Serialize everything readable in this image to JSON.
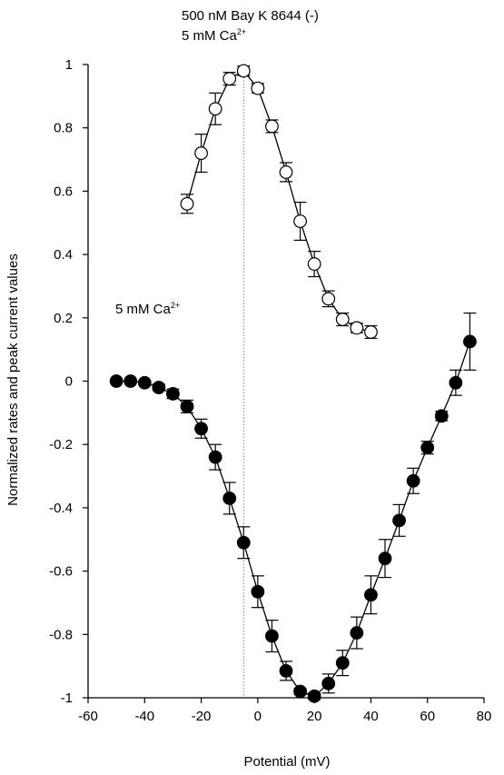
{
  "chart_data": {
    "type": "scatter",
    "xlabel": "Potential (mV)",
    "ylabel": "Normalized rates and peak current values",
    "xlim": [
      -60,
      80
    ],
    "ylim": [
      -1,
      1
    ],
    "x_ticks": [
      -60,
      -40,
      -20,
      0,
      20,
      40,
      60,
      80
    ],
    "y_ticks": [
      1,
      0.8,
      0.6,
      0.4,
      0.2,
      0,
      -0.2,
      -0.4,
      -0.6,
      -0.8,
      -1
    ],
    "x_tick_labels": [
      "-60",
      "-40",
      "-20",
      "0",
      "20",
      "40",
      "60",
      "80"
    ],
    "y_tick_labels": [
      "1",
      "0.8",
      "0.6",
      "0.4",
      "0.2",
      "0",
      "-0.2",
      "-0.4",
      "-0.6",
      "-0.8",
      "-1"
    ],
    "grid": false,
    "reference_line_x": -5,
    "annotations": {
      "top_line1": "500 nM Bay K 8644 (-)",
      "top_line2": "5 mM Ca",
      "top_line2_sup": "2+",
      "mid": "5 mM Ca",
      "mid_sup": "2+"
    },
    "series": [
      {
        "marker": "open-circle",
        "x": [
          -25,
          -20,
          -15,
          -10,
          -5,
          0,
          5,
          10,
          15,
          20,
          25,
          30,
          35,
          40
        ],
        "y": [
          0.56,
          0.72,
          0.86,
          0.955,
          0.98,
          0.925,
          0.805,
          0.66,
          0.505,
          0.37,
          0.26,
          0.195,
          0.168,
          0.155
        ],
        "err_up": [
          0.03,
          0.06,
          0.05,
          0.02,
          0.015,
          0.015,
          0.02,
          0.03,
          0.06,
          0.04,
          0.025,
          0.02,
          0.015,
          0.02
        ],
        "err_down": [
          0.03,
          0.06,
          0.05,
          0.02,
          0.015,
          0.015,
          0.02,
          0.03,
          0.06,
          0.04,
          0.025,
          0.02,
          0.015,
          0.02
        ]
      },
      {
        "marker": "filled-circle",
        "x": [
          -50,
          -45,
          -40,
          -35,
          -30,
          -25,
          -20,
          -15,
          -10,
          -5,
          0,
          5,
          10,
          15,
          20,
          25,
          30,
          35,
          40,
          45,
          50,
          55,
          60,
          65,
          70,
          75
        ],
        "y": [
          0,
          0,
          -0.005,
          -0.02,
          -0.04,
          -0.08,
          -0.15,
          -0.24,
          -0.37,
          -0.51,
          -0.665,
          -0.805,
          -0.915,
          -0.98,
          -0.995,
          -0.955,
          -0.89,
          -0.795,
          -0.675,
          -0.56,
          -0.44,
          -0.315,
          -0.21,
          -0.11,
          -0.005,
          0.125
        ],
        "err_up": [
          0,
          0,
          0.005,
          0.01,
          0.015,
          0.02,
          0.03,
          0.04,
          0.05,
          0.05,
          0.05,
          0.05,
          0.03,
          0.01,
          0.01,
          0.03,
          0.04,
          0.05,
          0.06,
          0.06,
          0.05,
          0.04,
          0.02,
          0.015,
          0.04,
          0.09
        ],
        "err_down": [
          0,
          0,
          0.005,
          0.01,
          0.015,
          0.02,
          0.03,
          0.04,
          0.05,
          0.05,
          0.05,
          0.05,
          0.03,
          0.01,
          0.01,
          0.03,
          0.04,
          0.05,
          0.06,
          0.06,
          0.05,
          0.04,
          0.02,
          0.015,
          0.04,
          0.09
        ]
      }
    ]
  }
}
